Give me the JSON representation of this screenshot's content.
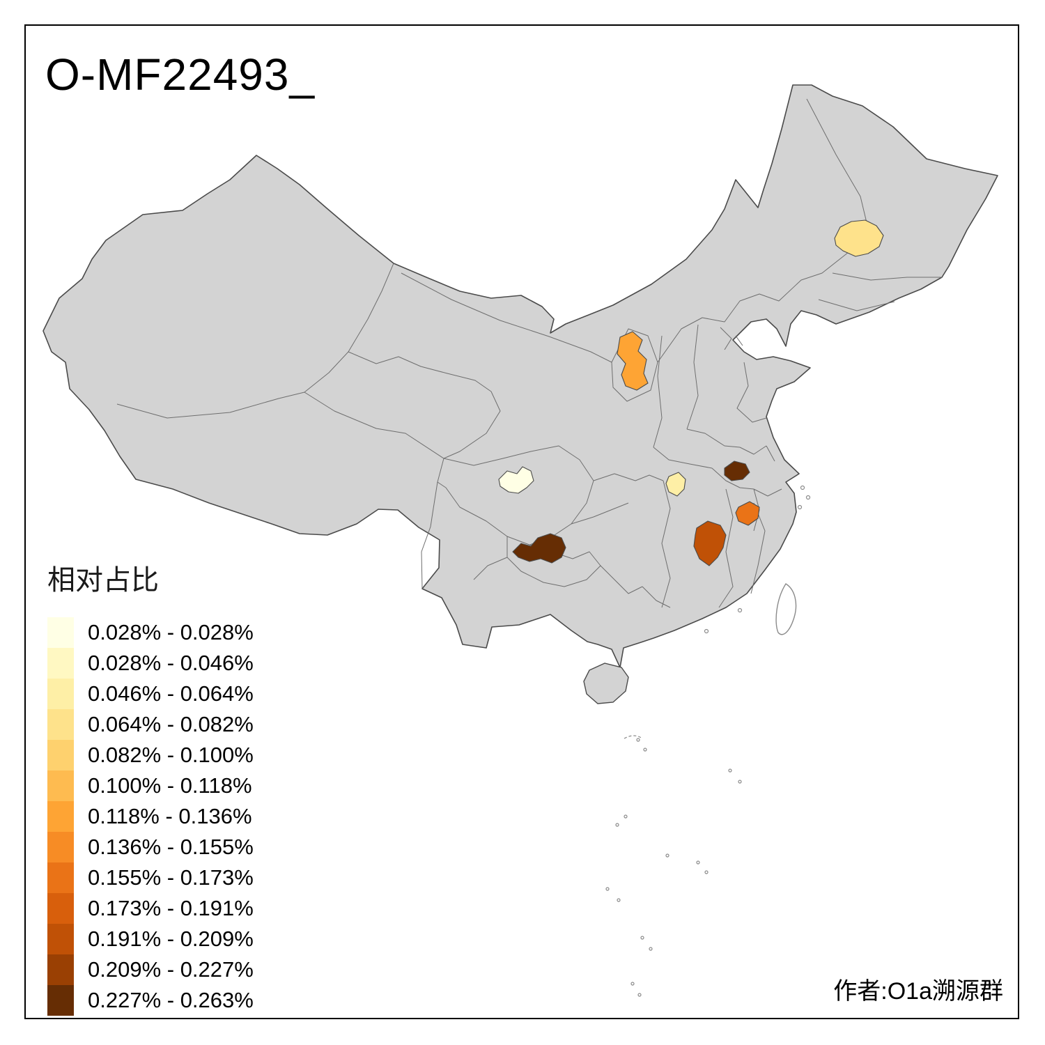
{
  "title": "O-MF22493_",
  "author_credit": "作者:O1a溯源群",
  "legend": {
    "title": "相对占比",
    "items": [
      {
        "label": "0.028% - 0.028%",
        "color": "#FFFFE5"
      },
      {
        "label": "0.028% - 0.046%",
        "color": "#FFF8C2"
      },
      {
        "label": "0.046% - 0.064%",
        "color": "#FEEFA6"
      },
      {
        "label": "0.064% - 0.082%",
        "color": "#FEE28B"
      },
      {
        "label": "0.082% - 0.100%",
        "color": "#FED16E"
      },
      {
        "label": "0.100% - 0.118%",
        "color": "#FEBB50"
      },
      {
        "label": "0.118% - 0.136%",
        "color": "#FEA434"
      },
      {
        "label": "0.136% - 0.155%",
        "color": "#F78C25"
      },
      {
        "label": "0.155% - 0.173%",
        "color": "#EA7317"
      },
      {
        "label": "0.173% - 0.191%",
        "color": "#D85F0C"
      },
      {
        "label": "0.191% - 0.209%",
        "color": "#C05106"
      },
      {
        "label": "0.209% - 0.227%",
        "color": "#9A4003"
      },
      {
        "label": "0.227% - 0.263%",
        "color": "#662D04"
      }
    ]
  },
  "map": {
    "base_fill": "#D3D3D3",
    "outline_color": "#4A4A4A",
    "interior_border_color": "#6E6E6E",
    "background": "#FFFFFF",
    "regions": [
      {
        "id": "northeast",
        "approx_location": "northeast (Heilongjiang area)",
        "value_range": "0.064% - 0.082%",
        "color": "#FEE28B"
      },
      {
        "id": "north-central",
        "approx_location": "north-central (Ningxia area)",
        "value_range": "0.118% - 0.136%",
        "color": "#FEA434"
      },
      {
        "id": "sichuan-basin",
        "approx_location": "southwest (Sichuan area)",
        "value_range": "0.028% - 0.028%",
        "color": "#FFFFE5"
      },
      {
        "id": "central",
        "approx_location": "central (Hubei area)",
        "value_range": "0.046% - 0.064%",
        "color": "#FEEFA6"
      },
      {
        "id": "east-small",
        "approx_location": "east (Anhui area)",
        "value_range": "0.227% - 0.263%",
        "color": "#662D04"
      },
      {
        "id": "east-coast",
        "approx_location": "east coast (Zhejiang area)",
        "value_range": "0.155% - 0.173%",
        "color": "#EA7317"
      },
      {
        "id": "southeast",
        "approx_location": "southeast (Jiangxi area)",
        "value_range": "0.191% - 0.209%",
        "color": "#C05106"
      },
      {
        "id": "southwest",
        "approx_location": "southwest (Guizhou area)",
        "value_range": "0.227% - 0.263%",
        "color": "#662D04"
      }
    ]
  },
  "chart_data": {
    "type": "choropleth",
    "title": "O-MF22493_",
    "legend_title": "相对占比",
    "value_unit": "percent",
    "value_domain": [
      "0.028%",
      "0.263%"
    ],
    "bins": [
      "0.028% - 0.028%",
      "0.028% - 0.046%",
      "0.046% - 0.064%",
      "0.064% - 0.082%",
      "0.082% - 0.100%",
      "0.100% - 0.118%",
      "0.118% - 0.136%",
      "0.136% - 0.155%",
      "0.155% - 0.173%",
      "0.173% - 0.191%",
      "0.191% - 0.209%",
      "0.209% - 0.227%",
      "0.227% - 0.263%"
    ],
    "regions": [
      {
        "approx_location": "northeast (Heilongjiang area)",
        "value_range": "0.064% - 0.082%"
      },
      {
        "approx_location": "north-central (Ningxia area)",
        "value_range": "0.118% - 0.136%"
      },
      {
        "approx_location": "southwest (Sichuan area)",
        "value_range": "0.028% - 0.028%"
      },
      {
        "approx_location": "central (Hubei area)",
        "value_range": "0.046% - 0.064%"
      },
      {
        "approx_location": "east (Anhui area)",
        "value_range": "0.227% - 0.263%"
      },
      {
        "approx_location": "east coast (Zhejiang area)",
        "value_range": "0.155% - 0.173%"
      },
      {
        "approx_location": "southeast (Jiangxi area)",
        "value_range": "0.191% - 0.209%"
      },
      {
        "approx_location": "southwest (Guizhou area)",
        "value_range": "0.227% - 0.263%"
      }
    ],
    "note": "all other provinces rendered in neutral gray (no highlighted value)"
  }
}
